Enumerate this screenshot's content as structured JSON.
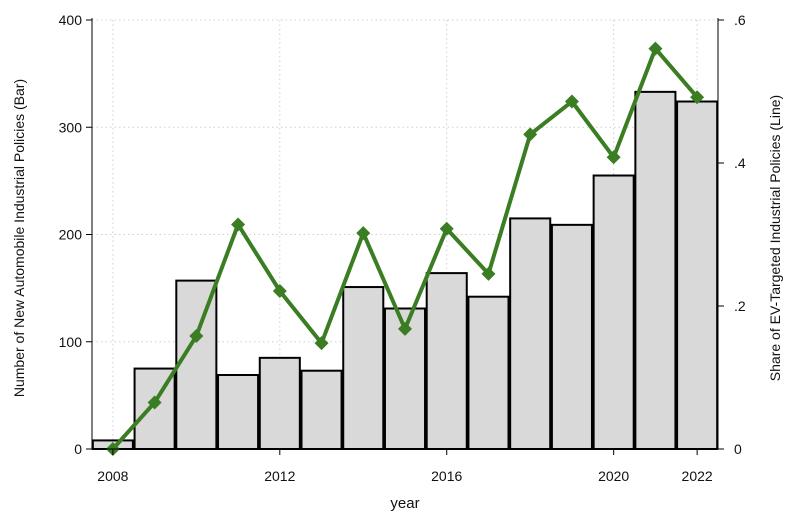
{
  "chart_data": {
    "type": "bar",
    "x": [
      2008,
      2009,
      2010,
      2011,
      2012,
      2013,
      2014,
      2015,
      2016,
      2017,
      2018,
      2019,
      2020,
      2021,
      2022
    ],
    "xlabel": "year",
    "xticks": [
      2008,
      2012,
      2016,
      2020,
      2022
    ],
    "grid": true,
    "series": [
      {
        "type": "bar",
        "axis": "left",
        "values": [
          8,
          75,
          157,
          69,
          85,
          73,
          151,
          131,
          164,
          142,
          215,
          209,
          255,
          333,
          324
        ],
        "color": "#d9d9d9",
        "edgecolor": "#000000"
      },
      {
        "type": "line",
        "axis": "right",
        "marker": "diamond",
        "values": [
          0.0,
          0.065,
          0.158,
          0.314,
          0.221,
          0.148,
          0.302,
          0.168,
          0.308,
          0.245,
          0.44,
          0.486,
          0.408,
          0.56,
          0.492
        ],
        "color": "#3a7d22"
      }
    ],
    "y_left": {
      "label": "Number of New Automobile Industrial Policies (Bar)",
      "lim": [
        0,
        400
      ],
      "ticks": [
        0,
        100,
        200,
        300,
        400
      ],
      "tick_labels": [
        "0",
        "100",
        "200",
        "300",
        "400"
      ]
    },
    "y_right": {
      "label": "Share of EV-Targeted  Industrial Policies (Line)",
      "lim": [
        0,
        0.6
      ],
      "ticks": [
        0,
        0.2,
        0.4,
        0.6
      ],
      "tick_labels": [
        "0",
        ".2",
        ".4",
        ".6"
      ]
    }
  }
}
